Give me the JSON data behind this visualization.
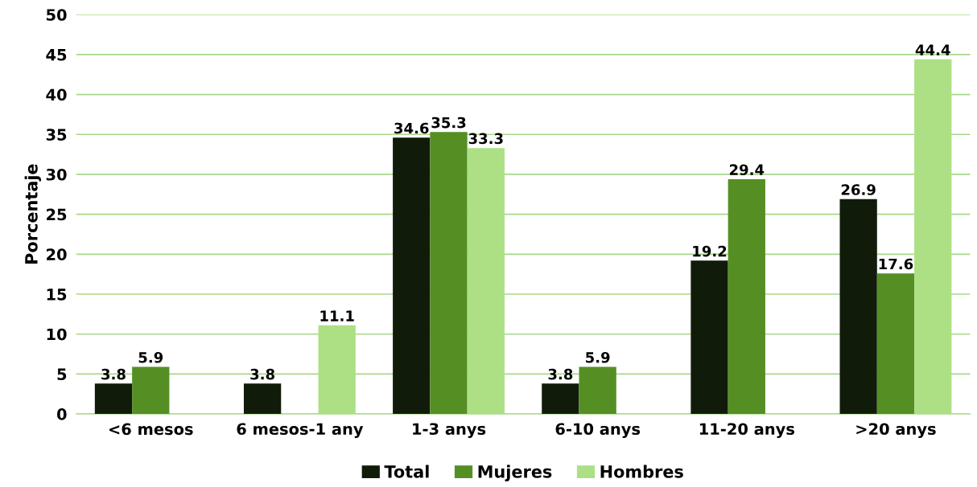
{
  "chart_data": {
    "type": "bar",
    "ylabel": "Porcentaje",
    "categories": [
      "<6 mesos",
      "6 mesos-1 any",
      "1-3 anys",
      "6-10 anys",
      "11-20 anys",
      ">20 anys"
    ],
    "series": [
      {
        "name": "Total",
        "color": "#101c09",
        "values": [
          3.8,
          3.8,
          34.6,
          3.8,
          19.2,
          26.9
        ]
      },
      {
        "name": "Mujeres",
        "color": "#558f24",
        "values": [
          5.9,
          null,
          35.3,
          5.9,
          29.4,
          17.6
        ]
      },
      {
        "name": "Hombres",
        "color": "#ade085",
        "values": [
          null,
          11.1,
          33.3,
          null,
          null,
          44.4
        ]
      }
    ],
    "ylim": [
      0,
      50
    ],
    "yticks": [
      0,
      5,
      10,
      15,
      20,
      25,
      30,
      35,
      40,
      45,
      50
    ],
    "grid": "y",
    "legend": "bottom",
    "data_labels": true
  }
}
